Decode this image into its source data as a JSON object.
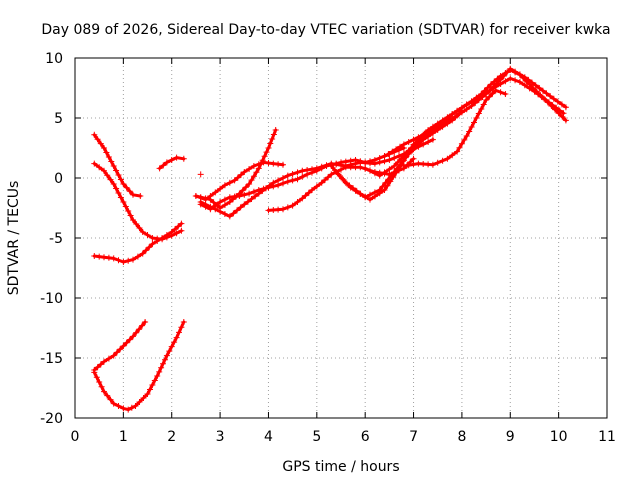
{
  "chart_data": {
    "type": "scatter",
    "title": "Day 089 of 2026, Sidereal Day-to-day VTEC variation (SDTVAR) for receiver kwka",
    "xlabel": "GPS time / hours",
    "ylabel": "SDTVAR / TECUs",
    "xlim": [
      0,
      11
    ],
    "ylim": [
      -20,
      10
    ],
    "x_ticks": [
      0,
      1,
      2,
      3,
      4,
      5,
      6,
      7,
      8,
      9,
      10,
      11
    ],
    "y_ticks": [
      -20,
      -15,
      -10,
      -5,
      0,
      5,
      10
    ],
    "grid": true,
    "marker": "+",
    "color": "#ff0000",
    "series": [
      {
        "x": [
          0.4,
          0.6,
          0.8,
          1.0,
          1.2,
          1.35
        ],
        "y": [
          3.6,
          2.5,
          1.0,
          -0.5,
          -1.4,
          -1.5
        ]
      },
      {
        "x": [
          0.4,
          0.6,
          0.8,
          1.0,
          1.2,
          1.4,
          1.6,
          1.8,
          2.0,
          2.2
        ],
        "y": [
          1.2,
          0.6,
          -0.5,
          -2.0,
          -3.5,
          -4.5,
          -5.0,
          -5.1,
          -4.8,
          -4.4
        ]
      },
      {
        "x": [
          0.4,
          0.6,
          0.8,
          1.0,
          1.2,
          1.4,
          1.6,
          1.8,
          2.0,
          2.2
        ],
        "y": [
          -6.5,
          -6.6,
          -6.7,
          -7.0,
          -6.8,
          -6.3,
          -5.5,
          -5.0,
          -4.5,
          -3.8
        ]
      },
      {
        "x": [
          1.75,
          1.9,
          2.1,
          2.25
        ],
        "y": [
          0.8,
          1.3,
          1.7,
          1.6
        ]
      },
      {
        "x": [
          0.4,
          0.6,
          0.8,
          1.0,
          1.1,
          1.25,
          1.5,
          1.7,
          1.9,
          2.1,
          2.25
        ],
        "y": [
          -16.2,
          -17.8,
          -18.8,
          -19.2,
          -19.3,
          -19.0,
          -18.0,
          -16.5,
          -14.8,
          -13.3,
          -12.0
        ]
      },
      {
        "x": [
          0.4,
          0.6,
          0.8,
          1.0,
          1.2,
          1.45
        ],
        "y": [
          -16.0,
          -15.3,
          -14.8,
          -14.0,
          -13.2,
          -12.0
        ]
      },
      {
        "x": [
          2.6
        ],
        "y": [
          0.3
        ]
      },
      {
        "x": [
          2.5,
          2.7,
          2.9,
          3.1,
          3.3,
          3.5,
          3.7,
          3.9,
          4.1,
          4.3
        ],
        "y": [
          -1.5,
          -1.8,
          -1.2,
          -0.6,
          -0.2,
          0.5,
          1.0,
          1.3,
          1.2,
          1.1
        ]
      },
      {
        "x": [
          2.5,
          2.8,
          3.0,
          3.2,
          3.4,
          3.6,
          3.8,
          4.0,
          4.15
        ],
        "y": [
          -1.5,
          -1.8,
          -2.5,
          -2.0,
          -1.3,
          -0.5,
          0.8,
          2.5,
          4.0
        ]
      },
      {
        "x": [
          2.6,
          2.8,
          3.0,
          3.2,
          3.4,
          3.6,
          3.8,
          4.0,
          4.2,
          4.4,
          4.6,
          4.8,
          5.0,
          5.2,
          5.5,
          5.8,
          6.0,
          6.2,
          6.5,
          6.8
        ],
        "y": [
          -2.2,
          -2.6,
          -2.0,
          -1.6,
          -1.5,
          -1.3,
          -1.0,
          -0.8,
          -0.6,
          -0.3,
          -0.1,
          0.3,
          0.6,
          1.0,
          1.3,
          1.5,
          1.3,
          1.5,
          2.0,
          2.5
        ]
      },
      {
        "x": [
          2.6,
          2.9,
          3.2,
          3.5,
          3.8,
          4.1,
          4.4,
          4.7,
          5.0,
          5.3,
          5.6,
          5.9,
          6.2,
          6.5,
          6.8,
          7.1,
          7.4
        ],
        "y": [
          -2.0,
          -2.6,
          -3.2,
          -2.2,
          -1.3,
          -0.4,
          0.2,
          0.6,
          0.8,
          1.2,
          1.0,
          1.3,
          1.2,
          1.5,
          2.0,
          2.6,
          3.2
        ]
      },
      {
        "x": [
          4.0,
          4.3,
          4.5,
          4.7,
          4.9,
          5.1,
          5.3,
          5.6,
          5.9,
          6.2,
          6.5,
          6.8,
          7.0
        ],
        "y": [
          -2.7,
          -2.6,
          -2.3,
          -1.7,
          -1.0,
          -0.4,
          0.3,
          0.9,
          0.9,
          0.5,
          0.3,
          0.8,
          1.6
        ]
      },
      {
        "x": [
          5.4,
          5.7,
          6.0,
          6.3,
          6.6,
          6.9,
          7.2,
          7.5,
          7.8,
          8.0
        ],
        "y": [
          0.5,
          -0.8,
          -1.6,
          -1.0,
          0.5,
          2.0,
          3.2,
          4.0,
          4.8,
          5.6
        ]
      },
      {
        "x": [
          5.3,
          5.6,
          5.9,
          6.1,
          6.4,
          6.7,
          7.0,
          7.3,
          7.6,
          7.9,
          8.2,
          8.4,
          8.6,
          8.8,
          9.0,
          9.2,
          9.4,
          9.7,
          10.0,
          10.15
        ],
        "y": [
          1.0,
          -0.4,
          -1.3,
          -1.8,
          -1.0,
          0.8,
          2.8,
          4.0,
          4.8,
          5.6,
          6.4,
          7.0,
          7.8,
          8.5,
          9.0,
          8.6,
          7.8,
          6.6,
          5.4,
          4.8
        ]
      },
      {
        "x": [
          6.0,
          6.3,
          6.6,
          6.9,
          7.2,
          7.5,
          7.8,
          8.1,
          8.4,
          8.7,
          9.0,
          9.2,
          9.5,
          9.8,
          10.1
        ],
        "y": [
          0.8,
          0.2,
          1.0,
          2.3,
          3.3,
          4.2,
          5.3,
          6.1,
          6.8,
          7.6,
          8.3,
          8.0,
          7.2,
          6.3,
          5.4
        ]
      },
      {
        "x": [
          6.4,
          6.8,
          7.2,
          7.6,
          7.9,
          8.2,
          8.5,
          8.8,
          9.0,
          9.3,
          9.6,
          9.9,
          10.15
        ],
        "y": [
          1.8,
          2.8,
          3.6,
          4.5,
          5.2,
          6.0,
          7.0,
          8.2,
          9.1,
          8.4,
          7.5,
          6.6,
          5.9
        ]
      },
      {
        "x": [
          6.8,
          7.1,
          7.4,
          7.7,
          7.9,
          8.1,
          8.3,
          8.5,
          8.7,
          8.9
        ],
        "y": [
          1.0,
          1.2,
          1.1,
          1.6,
          2.2,
          3.5,
          5.0,
          6.5,
          7.3,
          7.0
        ]
      }
    ]
  }
}
